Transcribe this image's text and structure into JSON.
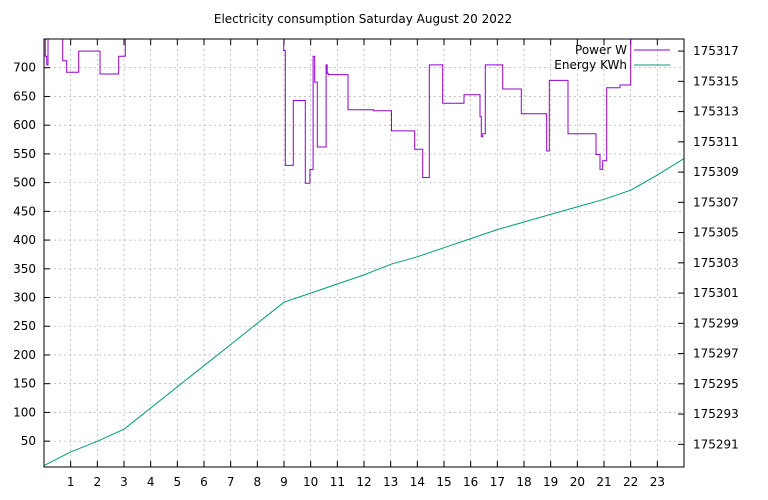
{
  "chart_data": {
    "type": "line",
    "title": "Electricity consumption Saturday August 20 2022",
    "xlabel": "",
    "ylabel": "",
    "y2label": "",
    "grid": true,
    "legend_position": "top-right",
    "x_range": [
      0,
      24
    ],
    "x_ticks": [
      1,
      2,
      3,
      4,
      5,
      6,
      7,
      8,
      9,
      10,
      11,
      12,
      13,
      14,
      15,
      16,
      17,
      18,
      19,
      20,
      21,
      22,
      23
    ],
    "y_range": [
      5,
      750
    ],
    "y_ticks": [
      50,
      100,
      150,
      200,
      250,
      300,
      350,
      400,
      450,
      500,
      550,
      600,
      650,
      700
    ],
    "y2_range": [
      175289.5,
      175317.8
    ],
    "y2_ticks": [
      175291,
      175293,
      175295,
      175297,
      175299,
      175301,
      175303,
      175305,
      175307,
      175309,
      175311,
      175313,
      175315,
      175317
    ],
    "series": [
      {
        "name": "Power W",
        "axis": "left",
        "color": "#9400d3",
        "step": true,
        "x": [
          0.0,
          0.05,
          0.1,
          0.15,
          0.35,
          0.7,
          0.85,
          1.3,
          2.1,
          2.8,
          3.05,
          8.97,
          8.99,
          9.05,
          9.35,
          9.8,
          9.97,
          10.09,
          10.15,
          10.25,
          10.58,
          10.62,
          10.66,
          11.4,
          12.15,
          12.35,
          12.4,
          13.03,
          13.9,
          14.2,
          14.45,
          14.95,
          15.75,
          16.35,
          16.4,
          16.45,
          16.55,
          17.2,
          17.9,
          18.85,
          18.95,
          19.65,
          20.7,
          20.85,
          20.95,
          21.1,
          21.6,
          22.0
        ],
        "values": [
          750,
          720,
          705,
          750,
          750,
          712,
          692,
          729,
          689,
          720,
          750,
          750,
          730,
          530,
          643,
          499,
          523,
          720,
          675,
          562,
          705,
          690,
          688,
          627,
          627,
          625,
          625,
          590,
          558,
          509,
          705,
          638,
          653,
          615,
          580,
          585,
          705,
          663,
          620,
          555,
          678,
          585,
          549,
          523,
          538,
          665,
          670,
          750
        ]
      },
      {
        "name": "Energy KWh",
        "axis": "right",
        "color": "#009e73",
        "step": false,
        "x": [
          0,
          1,
          2,
          3,
          4,
          5,
          6,
          7,
          8,
          9,
          10,
          11,
          12,
          13,
          14,
          15,
          16,
          17,
          18,
          19,
          20,
          21,
          22,
          23,
          24
        ],
        "values": [
          175289.6,
          175290.5,
          175291.2,
          175292.0,
          175293.4,
          175294.8,
          175296.2,
          175297.6,
          175299.0,
          175300.4,
          175301.0,
          175301.6,
          175302.2,
          175302.9,
          175303.4,
          175304.0,
          175304.6,
          175305.2,
          175305.7,
          175306.2,
          175306.7,
          175307.2,
          175307.8,
          175308.8,
          175309.9
        ]
      }
    ]
  }
}
